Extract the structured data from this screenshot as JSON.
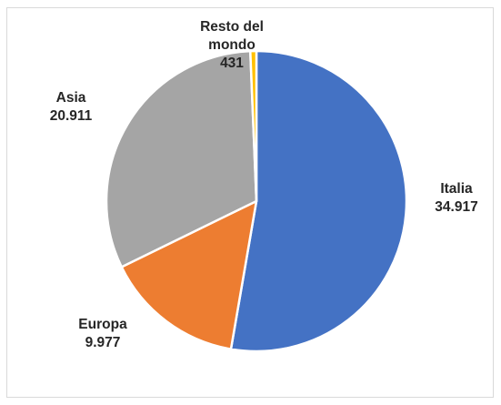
{
  "chart_data": {
    "type": "pie",
    "title": "",
    "categories": [
      "Italia",
      "Europa",
      "Asia",
      "Resto del mondo"
    ],
    "values": [
      34917,
      9977,
      20911,
      431
    ],
    "value_labels": [
      "34.917",
      "9.977",
      "20.911",
      "431"
    ],
    "category_label_lines": [
      [
        "Italia"
      ],
      [
        "Europa"
      ],
      [
        "Asia"
      ],
      [
        "Resto del",
        "mondo"
      ]
    ],
    "colors": [
      "#4472c4",
      "#ed7d31",
      "#a5a5a5",
      "#ffc000"
    ],
    "start_angle_deg": 0,
    "direction": "clockwise",
    "legend": "none",
    "data_labels": "outside"
  }
}
